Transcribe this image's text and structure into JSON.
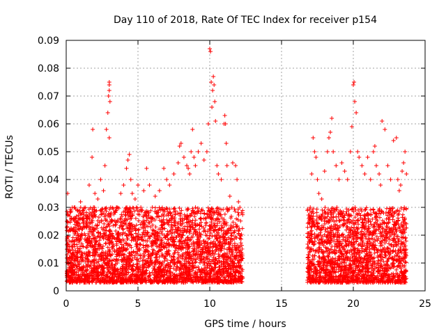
{
  "chart_data": {
    "type": "scatter",
    "title": "Day 110 of 2018, Rate Of TEC Index for receiver p154",
    "xlabel": "GPS time / hours",
    "ylabel": "ROTI / TECUs",
    "xlim": [
      0,
      25
    ],
    "ylim": [
      0,
      0.09
    ],
    "xticks": [
      0,
      5,
      10,
      15,
      20,
      25
    ],
    "yticks": [
      0,
      0.01,
      0.02,
      0.03,
      0.04,
      0.05,
      0.06,
      0.07,
      0.08,
      0.09
    ],
    "xtick_labels": [
      "0",
      "5",
      "10",
      "15",
      "20",
      "25"
    ],
    "ytick_labels": [
      "0",
      "0.01",
      "0.02",
      "0.03",
      "0.04",
      "0.05",
      "0.06",
      "0.07",
      "0.08",
      "0.09"
    ],
    "grid": true,
    "marker": "+",
    "color": "#ff0000",
    "series": [
      {
        "name": "ROTI",
        "x": [
          0.05,
          0.1,
          0.2,
          0.3,
          0.4,
          0.5,
          0.6,
          0.8,
          1.0,
          1.2,
          1.4,
          1.6,
          1.8,
          1.85,
          1.9,
          2.0,
          2.2,
          2.4,
          2.6,
          2.7,
          2.8,
          2.9,
          2.95,
          3.0,
          3.0,
          3.0,
          3.0,
          3.05,
          3.1,
          3.2,
          3.5,
          3.8,
          4.0,
          4.2,
          4.3,
          4.4,
          4.5,
          4.6,
          4.8,
          5.0,
          5.2,
          5.4,
          5.6,
          5.8,
          6.0,
          6.2,
          6.5,
          6.8,
          7.0,
          7.2,
          7.5,
          7.8,
          7.9,
          8.0,
          8.2,
          8.4,
          8.5,
          8.6,
          8.7,
          8.8,
          8.9,
          9.0,
          9.2,
          9.4,
          9.6,
          9.8,
          9.9,
          10.0,
          10.05,
          10.1,
          10.15,
          10.2,
          10.25,
          10.3,
          10.35,
          10.4,
          10.5,
          10.6,
          10.8,
          11.0,
          11.05,
          11.1,
          11.15,
          11.2,
          11.4,
          11.6,
          11.8,
          11.9,
          12.0,
          12.1,
          12.2,
          17.0,
          17.1,
          17.2,
          17.3,
          17.4,
          17.5,
          17.6,
          17.8,
          18.0,
          18.2,
          18.3,
          18.4,
          18.5,
          18.6,
          18.8,
          19.0,
          19.2,
          19.4,
          19.6,
          19.8,
          19.9,
          20.0,
          20.05,
          20.1,
          20.2,
          20.3,
          20.4,
          20.6,
          20.8,
          21.0,
          21.2,
          21.4,
          21.5,
          21.6,
          21.8,
          21.9,
          22.0,
          22.2,
          22.4,
          22.6,
          22.8,
          23.0,
          23.1,
          23.2,
          23.3,
          23.4,
          23.5,
          23.6,
          23.7
        ],
        "y": [
          0.025,
          0.035,
          0.018,
          0.012,
          0.022,
          0.026,
          0.03,
          0.02,
          0.032,
          0.028,
          0.025,
          0.038,
          0.048,
          0.058,
          0.03,
          0.035,
          0.033,
          0.04,
          0.036,
          0.045,
          0.058,
          0.064,
          0.07,
          0.072,
          0.074,
          0.075,
          0.055,
          0.068,
          0.03,
          0.025,
          0.03,
          0.035,
          0.038,
          0.044,
          0.047,
          0.049,
          0.04,
          0.035,
          0.033,
          0.038,
          0.03,
          0.036,
          0.044,
          0.038,
          0.03,
          0.034,
          0.036,
          0.044,
          0.04,
          0.038,
          0.042,
          0.046,
          0.052,
          0.053,
          0.048,
          0.045,
          0.044,
          0.042,
          0.05,
          0.058,
          0.048,
          0.045,
          0.05,
          0.053,
          0.047,
          0.05,
          0.06,
          0.087,
          0.086,
          0.075,
          0.066,
          0.072,
          0.077,
          0.074,
          0.068,
          0.061,
          0.045,
          0.042,
          0.04,
          0.06,
          0.063,
          0.06,
          0.053,
          0.045,
          0.034,
          0.046,
          0.045,
          0.04,
          0.032,
          0.03,
          0.028,
          0.03,
          0.042,
          0.055,
          0.05,
          0.048,
          0.04,
          0.035,
          0.033,
          0.043,
          0.05,
          0.055,
          0.057,
          0.062,
          0.05,
          0.045,
          0.04,
          0.046,
          0.043,
          0.04,
          0.05,
          0.059,
          0.074,
          0.075,
          0.068,
          0.064,
          0.05,
          0.048,
          0.045,
          0.042,
          0.048,
          0.04,
          0.05,
          0.052,
          0.045,
          0.042,
          0.038,
          0.061,
          0.058,
          0.045,
          0.04,
          0.054,
          0.055,
          0.04,
          0.036,
          0.038,
          0.043,
          0.046,
          0.05,
          0.042
        ],
        "baseline_min": 0.003,
        "baseline_max": 0.03,
        "coverage_hours": [
          [
            0.0,
            12.3
          ],
          [
            16.8,
            23.7
          ]
        ]
      }
    ]
  }
}
